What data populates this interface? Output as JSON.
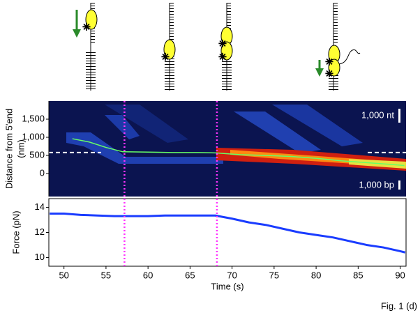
{
  "chart_data": [
    {
      "type": "kymograph",
      "ylabel": [
        "Distance from 5'end",
        "(nm)"
      ],
      "ylim": [
        -635,
        2000
      ],
      "yticks": [
        0,
        500,
        {
          "value": 1000,
          "label": "1,000"
        },
        {
          "value": 1500,
          "label": "1,500"
        }
      ],
      "xlim": [
        48.2,
        90.7
      ],
      "annotations": [
        "1,000 nt",
        "1,000 bp"
      ],
      "reference_line": 580,
      "markers": [
        57.2,
        68.2
      ],
      "marker_color": "#ff33ff",
      "series": [
        {
          "color": "#66ff66",
          "x": [
            51,
            53,
            55,
            57,
            60,
            63,
            66,
            68,
            71,
            74,
            77,
            80,
            83,
            86,
            89,
            90.5
          ],
          "values": [
            960,
            870,
            720,
            600,
            590,
            580,
            580,
            570,
            520,
            500,
            470,
            420,
            350,
            300,
            250,
            220
          ]
        }
      ]
    },
    {
      "type": "line",
      "xlabel": "Time (s)",
      "ylabel": "Force (pN)",
      "xlim": [
        48.2,
        90.7
      ],
      "ylim": [
        9.3,
        14.7
      ],
      "xticks": [
        50,
        55,
        60,
        65,
        70,
        75,
        80,
        85,
        90
      ],
      "yticks": [
        10,
        12,
        14
      ],
      "series": [
        {
          "color": "#1a3cff",
          "x": [
            48.3,
            50,
            52,
            54,
            56,
            58,
            60,
            62,
            64,
            66,
            68,
            70,
            72,
            74,
            76,
            78,
            80,
            82,
            84,
            86,
            88,
            90,
            90.6
          ],
          "values": [
            13.5,
            13.5,
            13.4,
            13.35,
            13.3,
            13.3,
            13.3,
            13.35,
            13.35,
            13.35,
            13.35,
            13.1,
            12.8,
            12.6,
            12.3,
            12.0,
            11.8,
            11.6,
            11.3,
            11.0,
            10.8,
            10.5,
            10.4
          ]
        }
      ]
    }
  ],
  "caption": "Fig. 1 (d)"
}
